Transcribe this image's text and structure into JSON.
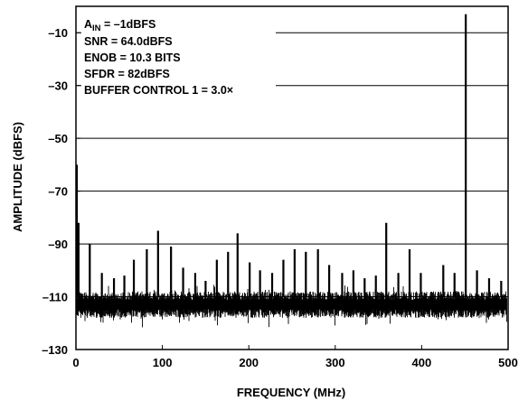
{
  "chart_data": {
    "type": "line",
    "title": "",
    "xlabel": "FREQUENCY (MHz)",
    "ylabel": "AMPLITUDE (dBFS)",
    "xlim": [
      0,
      500
    ],
    "ylim": [
      -130,
      0
    ],
    "x_ticks": [
      0,
      100,
      200,
      300,
      400,
      500
    ],
    "x_tick_labels": [
      "0",
      "100",
      "200",
      "300",
      "400",
      "500"
    ],
    "y_ticks": [
      -130,
      -110,
      -90,
      -70,
      -50,
      -30,
      -10
    ],
    "y_tick_labels": [
      "–130",
      "–110",
      "–90",
      "–70",
      "–50",
      "–30",
      "–10"
    ],
    "grid": "horizontal",
    "line_color": "#000000",
    "noise_floor_dbfs": [
      -118,
      -108
    ],
    "annotations": {
      "ain_prefix": "A",
      "ain_subscript": "IN",
      "ain_rest": " = –1dBFS",
      "snr": "SNR = 64.0dBFS",
      "enob": "ENOB = 10.3 BITS",
      "sfdr": "SFDR = 82dBFS",
      "buffer": "BUFFER CONTROL 1 = 3.0×"
    },
    "peaks": [
      {
        "x": 1,
        "y": -60
      },
      {
        "x": 3,
        "y": -82
      },
      {
        "x": 16,
        "y": -90
      },
      {
        "x": 30,
        "y": -101
      },
      {
        "x": 44,
        "y": -103
      },
      {
        "x": 56,
        "y": -102
      },
      {
        "x": 67,
        "y": -96
      },
      {
        "x": 82,
        "y": -92
      },
      {
        "x": 95,
        "y": -85
      },
      {
        "x": 110,
        "y": -91
      },
      {
        "x": 124,
        "y": -99
      },
      {
        "x": 138,
        "y": -101
      },
      {
        "x": 150,
        "y": -104
      },
      {
        "x": 163,
        "y": -96
      },
      {
        "x": 176,
        "y": -93
      },
      {
        "x": 187,
        "y": -86
      },
      {
        "x": 201,
        "y": -97
      },
      {
        "x": 213,
        "y": -100
      },
      {
        "x": 227,
        "y": -101
      },
      {
        "x": 240,
        "y": -96
      },
      {
        "x": 253,
        "y": -92
      },
      {
        "x": 266,
        "y": -93
      },
      {
        "x": 280,
        "y": -92
      },
      {
        "x": 293,
        "y": -98
      },
      {
        "x": 308,
        "y": -101
      },
      {
        "x": 321,
        "y": -100
      },
      {
        "x": 334,
        "y": -103
      },
      {
        "x": 347,
        "y": -102
      },
      {
        "x": 359,
        "y": -82
      },
      {
        "x": 373,
        "y": -101
      },
      {
        "x": 386,
        "y": -92
      },
      {
        "x": 399,
        "y": -101
      },
      {
        "x": 412,
        "y": -110
      },
      {
        "x": 425,
        "y": -98
      },
      {
        "x": 438,
        "y": -101
      },
      {
        "x": 451,
        "y": -3
      },
      {
        "x": 464,
        "y": -100
      },
      {
        "x": 478,
        "y": -103
      },
      {
        "x": 492,
        "y": -104
      }
    ]
  }
}
